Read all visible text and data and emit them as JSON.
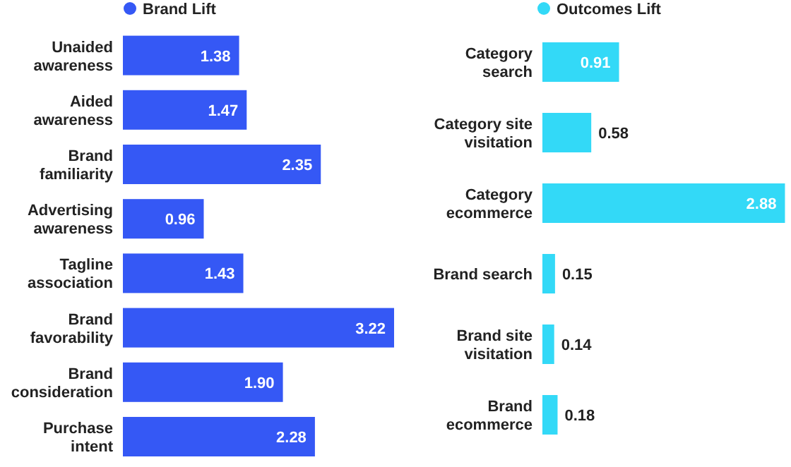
{
  "chart_data": [
    {
      "type": "bar",
      "orientation": "horizontal",
      "legend": "top",
      "categories": [
        "Unaided awareness",
        "Aided awareness",
        "Brand familiarity",
        "Advertising awareness",
        "Tagline association",
        "Brand favorability",
        "Brand consideration",
        "Purchase intent"
      ],
      "series": [
        {
          "name": "Brand Lift",
          "color": "#3558f5",
          "values": [
            1.38,
            1.47,
            2.35,
            0.96,
            1.43,
            3.22,
            1.9,
            2.28
          ],
          "value_labels": [
            "1.38",
            "1.47",
            "2.35",
            "0.96",
            "1.43",
            "3.22",
            "1.90",
            "2.28"
          ]
        }
      ]
    },
    {
      "type": "bar",
      "orientation": "horizontal",
      "legend": "top",
      "categories": [
        "Category search",
        "Category site visitation",
        "Category ecommerce",
        "Brand search",
        "Brand site visitation",
        "Brand ecommerce"
      ],
      "series": [
        {
          "name": "Outcomes Lift",
          "color": "#33d9f7",
          "values": [
            0.91,
            0.58,
            2.88,
            0.15,
            0.14,
            0.18
          ],
          "value_labels": [
            "0.91",
            "0.58",
            "2.88",
            "0.15",
            "0.14",
            "0.18"
          ]
        }
      ]
    }
  ]
}
